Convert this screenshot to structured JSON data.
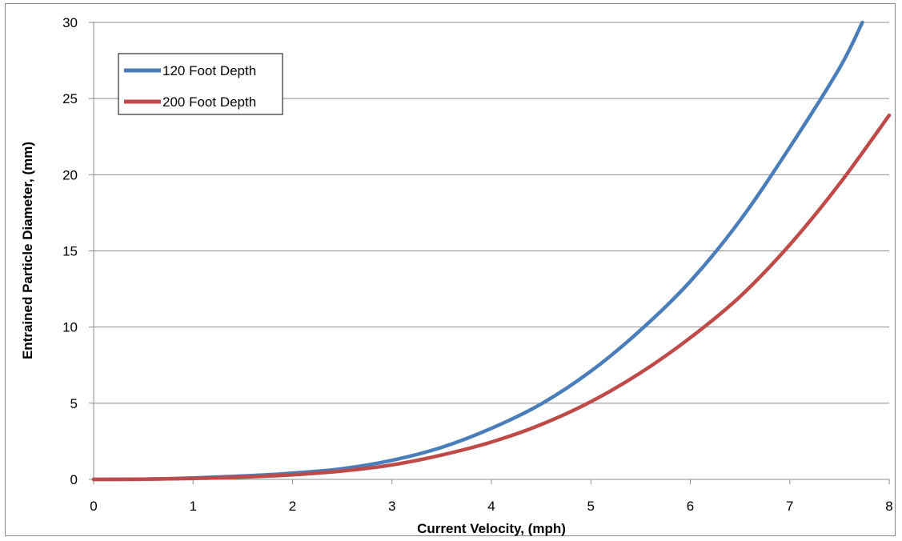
{
  "chart_data": {
    "type": "line",
    "title": "",
    "xlabel": "Current Velocity, (mph)",
    "ylabel": "Entrained Particle Diameter, (mm)",
    "xlim": [
      0,
      8
    ],
    "ylim": [
      0,
      30
    ],
    "x_ticks": [
      "0",
      "1",
      "2",
      "3",
      "4",
      "5",
      "6",
      "7",
      "8"
    ],
    "y_ticks": [
      "0",
      "5",
      "10",
      "15",
      "20",
      "25",
      "30"
    ],
    "grid": "horizontal",
    "legend_position": "top-left",
    "series": [
      {
        "name": "120 Foot Depth",
        "color": "#4a7ebb",
        "x": [
          0,
          0.5,
          1,
          1.5,
          2,
          2.5,
          3,
          3.5,
          4,
          4.5,
          5,
          5.5,
          6,
          6.5,
          7,
          7.5,
          7.73
        ],
        "y": [
          0,
          0.01,
          0.09,
          0.22,
          0.41,
          0.7,
          1.25,
          2.1,
          3.35,
          4.95,
          7.1,
          9.8,
          13.0,
          17.0,
          21.8,
          27.0,
          30.0
        ]
      },
      {
        "name": "200 Foot Depth",
        "color": "#be4b48",
        "x": [
          0,
          0.5,
          1,
          1.5,
          2,
          2.5,
          3,
          3.5,
          4,
          4.5,
          5,
          5.5,
          6,
          6.5,
          7,
          7.5,
          8
        ],
        "y": [
          0,
          0.01,
          0.06,
          0.15,
          0.3,
          0.55,
          0.95,
          1.6,
          2.45,
          3.6,
          5.1,
          7.0,
          9.3,
          12.0,
          15.4,
          19.4,
          23.9
        ]
      }
    ]
  }
}
